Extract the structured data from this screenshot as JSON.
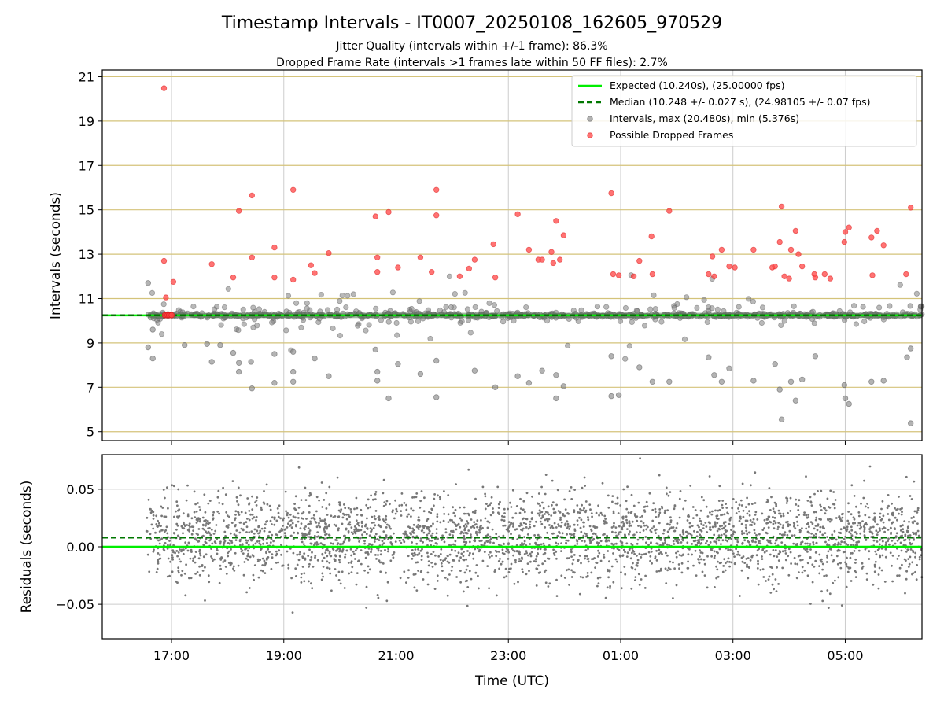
{
  "chart_data": {
    "type": "scatter",
    "title": "Timestamp Intervals - IT0007_20250108_162605_970529",
    "subtitles": [
      "Jitter Quality (intervals within +/-1 frame): 86.3%",
      "Dropped Frame Rate (intervals >1 frames late within 50 FF files): 2.7%"
    ],
    "xlabel": "Time (UTC)",
    "x_ticks": [
      "17:00",
      "19:00",
      "21:00",
      "23:00",
      "01:00",
      "03:00",
      "05:00"
    ],
    "x_range": [
      "2025-01-08T15:46",
      "2025-01-09T06:22"
    ],
    "top_panel": {
      "ylabel": "Intervals (seconds)",
      "ylim": [
        4.6,
        21.3
      ],
      "y_ticks": [
        5,
        7,
        9,
        11,
        13,
        15,
        17,
        19,
        21
      ],
      "grid": true,
      "legend": {
        "placement": "top-right",
        "entries": [
          {
            "label": "Expected (10.240s), (25.00000 fps)",
            "style": "line",
            "color": "#00ee00"
          },
          {
            "label": "Median (10.248 +/- 0.027 s), (24.98105 +/- 0.07 fps)",
            "style": "dashed",
            "color": "#007700"
          },
          {
            "label": "Intervals, max (20.480s), min (5.376s)",
            "style": "marker",
            "color": "#808080"
          },
          {
            "label": "Possible Dropped Frames",
            "style": "marker",
            "color": "#ff4444"
          }
        ]
      },
      "expected_interval": 10.24,
      "median_interval": 10.248,
      "dropped_frames": [
        {
          "x": "2025-01-08T16:52",
          "y": 20.48
        },
        {
          "x": "2025-01-08T16:52",
          "y": 12.7
        },
        {
          "x": "2025-01-08T16:54",
          "y": 11.05
        },
        {
          "x": "2025-01-08T17:02",
          "y": 11.75
        },
        {
          "x": "2025-01-08T17:43",
          "y": 12.55
        },
        {
          "x": "2025-01-08T18:06",
          "y": 11.95
        },
        {
          "x": "2025-01-08T18:12",
          "y": 14.95
        },
        {
          "x": "2025-01-08T18:26",
          "y": 15.65
        },
        {
          "x": "2025-01-08T18:26",
          "y": 12.85
        },
        {
          "x": "2025-01-08T18:50",
          "y": 13.3
        },
        {
          "x": "2025-01-08T18:50",
          "y": 11.95
        },
        {
          "x": "2025-01-08T19:10",
          "y": 15.9
        },
        {
          "x": "2025-01-08T19:10",
          "y": 11.85
        },
        {
          "x": "2025-01-08T19:29",
          "y": 12.5
        },
        {
          "x": "2025-01-08T19:33",
          "y": 12.15
        },
        {
          "x": "2025-01-08T19:48",
          "y": 13.05
        },
        {
          "x": "2025-01-08T20:38",
          "y": 14.7
        },
        {
          "x": "2025-01-08T20:40",
          "y": 12.85
        },
        {
          "x": "2025-01-08T20:40",
          "y": 12.2
        },
        {
          "x": "2025-01-08T20:52",
          "y": 14.9
        },
        {
          "x": "2025-01-08T21:02",
          "y": 12.4
        },
        {
          "x": "2025-01-08T21:26",
          "y": 12.85
        },
        {
          "x": "2025-01-08T21:38",
          "y": 12.2
        },
        {
          "x": "2025-01-08T21:43",
          "y": 15.9
        },
        {
          "x": "2025-01-08T21:43",
          "y": 14.75
        },
        {
          "x": "2025-01-08T22:08",
          "y": 12.0
        },
        {
          "x": "2025-01-08T22:18",
          "y": 12.35
        },
        {
          "x": "2025-01-08T22:24",
          "y": 12.75
        },
        {
          "x": "2025-01-08T22:44",
          "y": 13.45
        },
        {
          "x": "2025-01-08T22:46",
          "y": 11.95
        },
        {
          "x": "2025-01-08T23:10",
          "y": 14.8
        },
        {
          "x": "2025-01-08T23:22",
          "y": 13.2
        },
        {
          "x": "2025-01-08T23:32",
          "y": 12.75
        },
        {
          "x": "2025-01-08T23:36",
          "y": 12.75
        },
        {
          "x": "2025-01-08T23:46",
          "y": 13.1
        },
        {
          "x": "2025-01-08T23:48",
          "y": 12.6
        },
        {
          "x": "2025-01-08T23:51",
          "y": 14.5
        },
        {
          "x": "2025-01-08T23:55",
          "y": 12.75
        },
        {
          "x": "2025-01-08T23:59",
          "y": 13.85
        },
        {
          "x": "2025-01-09T00:50",
          "y": 15.75
        },
        {
          "x": "2025-01-09T00:52",
          "y": 12.1
        },
        {
          "x": "2025-01-09T00:58",
          "y": 12.05
        },
        {
          "x": "2025-01-09T01:14",
          "y": 12.0
        },
        {
          "x": "2025-01-09T01:20",
          "y": 12.7
        },
        {
          "x": "2025-01-09T01:33",
          "y": 13.8
        },
        {
          "x": "2025-01-09T01:34",
          "y": 12.1
        },
        {
          "x": "2025-01-09T01:52",
          "y": 14.95
        },
        {
          "x": "2025-01-09T02:34",
          "y": 12.1
        },
        {
          "x": "2025-01-09T02:38",
          "y": 12.9
        },
        {
          "x": "2025-01-09T02:40",
          "y": 12.0
        },
        {
          "x": "2025-01-09T02:48",
          "y": 13.2
        },
        {
          "x": "2025-01-09T02:56",
          "y": 12.45
        },
        {
          "x": "2025-01-09T03:02",
          "y": 12.4
        },
        {
          "x": "2025-01-09T03:22",
          "y": 13.2
        },
        {
          "x": "2025-01-09T03:42",
          "y": 12.4
        },
        {
          "x": "2025-01-09T03:45",
          "y": 12.45
        },
        {
          "x": "2025-01-09T03:50",
          "y": 13.55
        },
        {
          "x": "2025-01-09T03:52",
          "y": 15.15
        },
        {
          "x": "2025-01-09T03:55",
          "y": 12.0
        },
        {
          "x": "2025-01-09T04:00",
          "y": 11.9
        },
        {
          "x": "2025-01-09T04:02",
          "y": 13.2
        },
        {
          "x": "2025-01-09T04:07",
          "y": 14.05
        },
        {
          "x": "2025-01-09T04:10",
          "y": 13.0
        },
        {
          "x": "2025-01-09T04:14",
          "y": 12.45
        },
        {
          "x": "2025-01-09T04:27",
          "y": 12.1
        },
        {
          "x": "2025-01-09T04:28",
          "y": 11.95
        },
        {
          "x": "2025-01-09T04:38",
          "y": 12.1
        },
        {
          "x": "2025-01-09T04:44",
          "y": 11.9
        },
        {
          "x": "2025-01-09T04:59",
          "y": 13.55
        },
        {
          "x": "2025-01-09T05:00",
          "y": 14.0
        },
        {
          "x": "2025-01-09T05:04",
          "y": 14.2
        },
        {
          "x": "2025-01-09T05:28",
          "y": 13.75
        },
        {
          "x": "2025-01-09T05:29",
          "y": 12.05
        },
        {
          "x": "2025-01-09T05:34",
          "y": 14.05
        },
        {
          "x": "2025-01-09T05:41",
          "y": 13.4
        },
        {
          "x": "2025-01-09T06:05",
          "y": 12.1
        },
        {
          "x": "2025-01-09T06:10",
          "y": 15.1
        }
      ],
      "intervals_sample": [
        {
          "x": "2025-01-08T16:35",
          "y": 11.7
        },
        {
          "x": "2025-01-08T16:35",
          "y": 8.8
        },
        {
          "x": "2025-01-08T16:40",
          "y": 8.3
        },
        {
          "x": "2025-01-08T16:40",
          "y": 9.6
        },
        {
          "x": "2025-01-08T17:14",
          "y": 8.9
        },
        {
          "x": "2025-01-08T17:38",
          "y": 8.95
        },
        {
          "x": "2025-01-08T17:43",
          "y": 8.15
        },
        {
          "x": "2025-01-08T17:52",
          "y": 8.9
        },
        {
          "x": "2025-01-08T18:06",
          "y": 8.55
        },
        {
          "x": "2025-01-08T18:12",
          "y": 8.1
        },
        {
          "x": "2025-01-08T18:12",
          "y": 7.7
        },
        {
          "x": "2025-01-08T18:25",
          "y": 8.15
        },
        {
          "x": "2025-01-08T18:26",
          "y": 6.95
        },
        {
          "x": "2025-01-08T18:50",
          "y": 8.5
        },
        {
          "x": "2025-01-08T18:50",
          "y": 7.2
        },
        {
          "x": "2025-01-08T19:10",
          "y": 8.6
        },
        {
          "x": "2025-01-08T19:10",
          "y": 7.7
        },
        {
          "x": "2025-01-08T19:10",
          "y": 7.25
        },
        {
          "x": "2025-01-08T19:33",
          "y": 8.3
        },
        {
          "x": "2025-01-08T19:48",
          "y": 7.5
        },
        {
          "x": "2025-01-08T20:38",
          "y": 8.7
        },
        {
          "x": "2025-01-08T20:40",
          "y": 7.7
        },
        {
          "x": "2025-01-08T20:40",
          "y": 7.3
        },
        {
          "x": "2025-01-08T20:52",
          "y": 6.5
        },
        {
          "x": "2025-01-08T21:02",
          "y": 8.05
        },
        {
          "x": "2025-01-08T21:26",
          "y": 7.6
        },
        {
          "x": "2025-01-08T21:43",
          "y": 8.2
        },
        {
          "x": "2025-01-08T21:43",
          "y": 6.55
        },
        {
          "x": "2025-01-08T22:24",
          "y": 7.75
        },
        {
          "x": "2025-01-08T22:46",
          "y": 7.0
        },
        {
          "x": "2025-01-08T23:10",
          "y": 7.5
        },
        {
          "x": "2025-01-08T23:22",
          "y": 7.2
        },
        {
          "x": "2025-01-08T23:36",
          "y": 7.75
        },
        {
          "x": "2025-01-08T23:51",
          "y": 7.55
        },
        {
          "x": "2025-01-08T23:51",
          "y": 6.5
        },
        {
          "x": "2025-01-08T23:59",
          "y": 7.05
        },
        {
          "x": "2025-01-09T00:50",
          "y": 8.4
        },
        {
          "x": "2025-01-09T00:50",
          "y": 6.6
        },
        {
          "x": "2025-01-09T00:58",
          "y": 6.65
        },
        {
          "x": "2025-01-09T01:20",
          "y": 7.9
        },
        {
          "x": "2025-01-09T01:34",
          "y": 7.25
        },
        {
          "x": "2025-01-09T01:52",
          "y": 7.25
        },
        {
          "x": "2025-01-09T02:34",
          "y": 8.35
        },
        {
          "x": "2025-01-09T02:40",
          "y": 7.55
        },
        {
          "x": "2025-01-09T02:48",
          "y": 7.25
        },
        {
          "x": "2025-01-09T02:56",
          "y": 7.85
        },
        {
          "x": "2025-01-09T03:22",
          "y": 7.3
        },
        {
          "x": "2025-01-09T03:45",
          "y": 8.05
        },
        {
          "x": "2025-01-09T03:50",
          "y": 6.9
        },
        {
          "x": "2025-01-09T03:52",
          "y": 5.55
        },
        {
          "x": "2025-01-09T04:02",
          "y": 7.25
        },
        {
          "x": "2025-01-09T04:07",
          "y": 6.4
        },
        {
          "x": "2025-01-09T04:14",
          "y": 7.35
        },
        {
          "x": "2025-01-09T04:28",
          "y": 8.4
        },
        {
          "x": "2025-01-09T04:59",
          "y": 7.1
        },
        {
          "x": "2025-01-09T05:00",
          "y": 6.5
        },
        {
          "x": "2025-01-09T05:04",
          "y": 6.25
        },
        {
          "x": "2025-01-09T05:28",
          "y": 7.25
        },
        {
          "x": "2025-01-09T05:41",
          "y": 7.3
        },
        {
          "x": "2025-01-09T06:10",
          "y": 5.376
        },
        {
          "x": "2025-01-09T06:10",
          "y": 8.75
        },
        {
          "x": "2025-01-09T06:06",
          "y": 8.35
        }
      ]
    },
    "bottom_panel": {
      "ylabel": "Residuals (seconds)",
      "ylim": [
        -0.08,
        0.08
      ],
      "y_ticks": [
        0.05,
        0.0,
        -0.05
      ],
      "y_tick_labels": [
        "0.05",
        "0.00",
        "−0.05"
      ],
      "grid": true,
      "expected_residual": 0.0,
      "median_residual": 0.008
    },
    "colors": {
      "expected": "#00ee00",
      "median": "#007700",
      "intervals": "#808080",
      "dropped": "#ff4444",
      "gridline_yellow": "#d4c37a",
      "gridline_gray": "#cccccc"
    }
  }
}
